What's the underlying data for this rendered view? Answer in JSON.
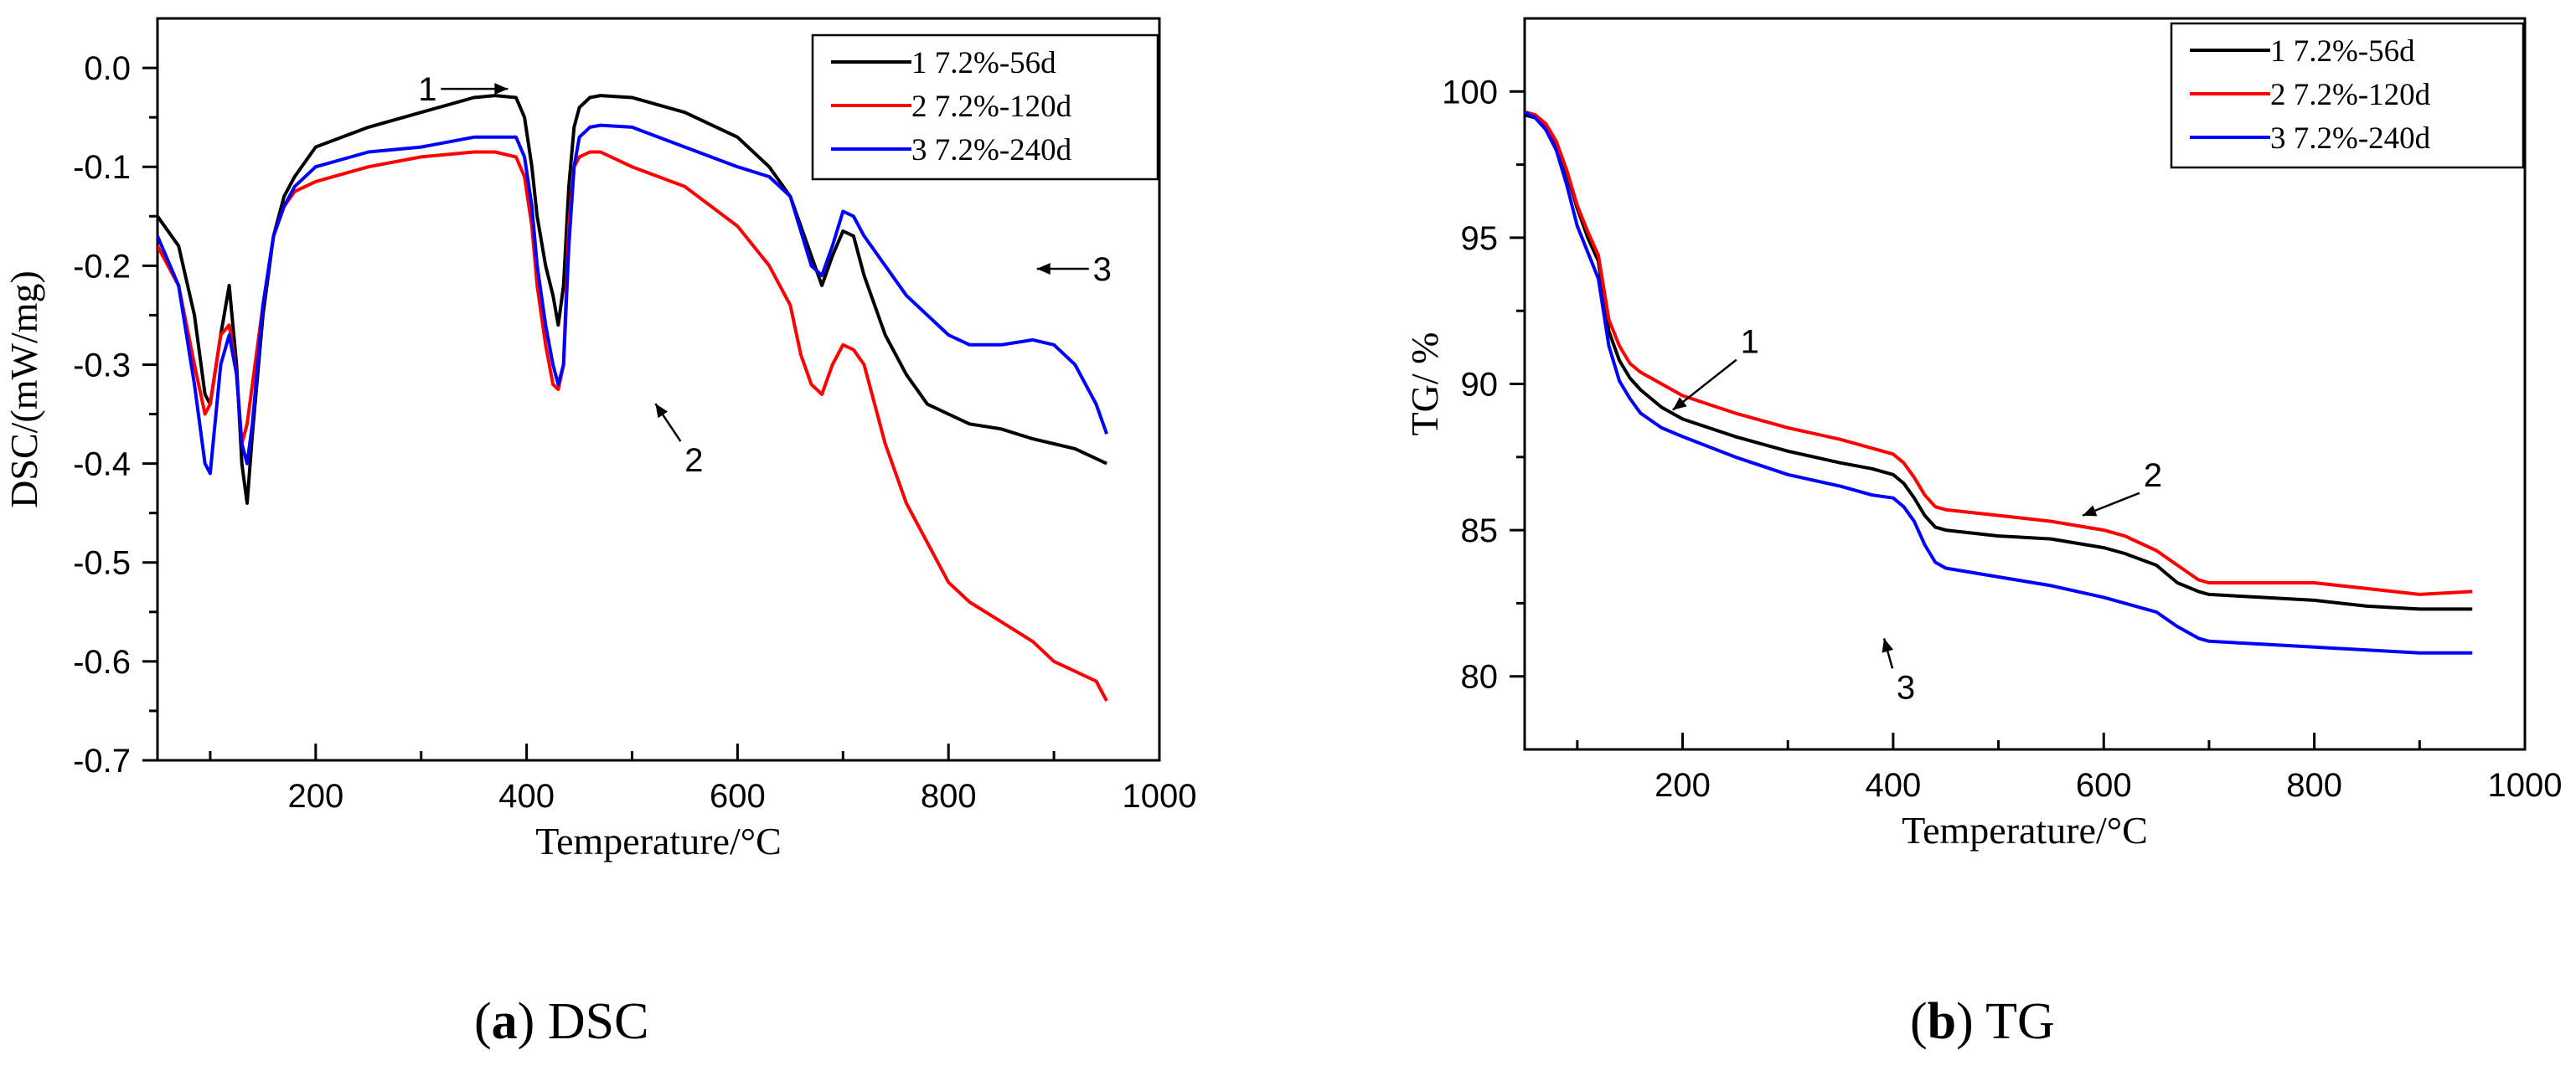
{
  "captions": [
    {
      "letter": "a",
      "text": "DSC"
    },
    {
      "letter": "b",
      "text": "TG"
    }
  ],
  "chart_data": [
    {
      "type": "line",
      "title": "",
      "xlabel": "Temperature/°C",
      "ylabel": "DSC/(mW/mg)",
      "xlim": [
        50,
        1000
      ],
      "ylim": [
        -0.7,
        0.05
      ],
      "xticks": [
        200,
        400,
        600,
        800,
        1000
      ],
      "yticks": [
        0.0,
        -0.1,
        -0.2,
        -0.3,
        -0.4,
        -0.5,
        -0.6,
        -0.7
      ],
      "ytick_labels": [
        "0.0",
        "-0.1",
        "-0.2",
        "-0.3",
        "-0.4",
        "-0.5",
        "-0.6",
        "-0.7"
      ],
      "grid": false,
      "legend_position": "top-right",
      "legend": [
        "1 7.2%-56d",
        "2 7.2%-120d",
        "3 7.2%-240d"
      ],
      "series": [
        {
          "name": "1 7.2%-56d",
          "color": "#000000",
          "x": [
            50,
            70,
            85,
            95,
            100,
            110,
            118,
            125,
            130,
            135,
            140,
            150,
            160,
            170,
            180,
            200,
            250,
            300,
            350,
            370,
            390,
            398,
            405,
            410,
            418,
            425,
            430,
            435,
            440,
            445,
            450,
            460,
            470,
            500,
            550,
            600,
            630,
            650,
            670,
            680,
            690,
            700,
            710,
            720,
            740,
            760,
            780,
            800,
            820,
            850,
            880,
            900,
            920,
            940,
            950
          ],
          "y": [
            -0.15,
            -0.18,
            -0.25,
            -0.33,
            -0.34,
            -0.27,
            -0.22,
            -0.3,
            -0.4,
            -0.44,
            -0.37,
            -0.25,
            -0.17,
            -0.13,
            -0.11,
            -0.08,
            -0.06,
            -0.045,
            -0.03,
            -0.028,
            -0.03,
            -0.05,
            -0.1,
            -0.15,
            -0.2,
            -0.23,
            -0.26,
            -0.22,
            -0.12,
            -0.06,
            -0.04,
            -0.03,
            -0.028,
            -0.03,
            -0.045,
            -0.07,
            -0.1,
            -0.13,
            -0.19,
            -0.22,
            -0.19,
            -0.165,
            -0.17,
            -0.21,
            -0.27,
            -0.31,
            -0.34,
            -0.35,
            -0.36,
            -0.365,
            -0.375,
            -0.38,
            -0.385,
            -0.395,
            -0.4
          ]
        },
        {
          "name": "2 7.2%-120d",
          "color": "#ff0000",
          "x": [
            50,
            70,
            85,
            95,
            100,
            110,
            118,
            125,
            130,
            135,
            140,
            150,
            160,
            170,
            180,
            200,
            250,
            300,
            350,
            370,
            390,
            398,
            405,
            410,
            418,
            425,
            430,
            435,
            440,
            445,
            450,
            460,
            470,
            500,
            550,
            600,
            630,
            650,
            660,
            670,
            680,
            690,
            700,
            710,
            720,
            740,
            760,
            780,
            800,
            820,
            850,
            880,
            900,
            920,
            940,
            950
          ],
          "y": [
            -0.18,
            -0.22,
            -0.3,
            -0.35,
            -0.34,
            -0.27,
            -0.26,
            -0.31,
            -0.38,
            -0.36,
            -0.32,
            -0.24,
            -0.17,
            -0.14,
            -0.125,
            -0.115,
            -0.1,
            -0.09,
            -0.085,
            -0.085,
            -0.09,
            -0.11,
            -0.16,
            -0.22,
            -0.28,
            -0.32,
            -0.325,
            -0.3,
            -0.16,
            -0.1,
            -0.09,
            -0.085,
            -0.085,
            -0.1,
            -0.12,
            -0.16,
            -0.2,
            -0.24,
            -0.29,
            -0.32,
            -0.33,
            -0.3,
            -0.28,
            -0.285,
            -0.3,
            -0.38,
            -0.44,
            -0.48,
            -0.52,
            -0.54,
            -0.56,
            -0.58,
            -0.6,
            -0.61,
            -0.62,
            -0.64
          ]
        },
        {
          "name": "3 7.2%-240d",
          "color": "#0000ff",
          "x": [
            50,
            70,
            85,
            95,
            100,
            110,
            118,
            125,
            130,
            135,
            140,
            150,
            160,
            170,
            180,
            200,
            250,
            300,
            350,
            370,
            390,
            398,
            405,
            410,
            418,
            425,
            430,
            435,
            440,
            445,
            450,
            460,
            470,
            500,
            550,
            600,
            630,
            650,
            670,
            680,
            690,
            700,
            710,
            720,
            740,
            760,
            780,
            800,
            820,
            850,
            880,
            900,
            920,
            940,
            950
          ],
          "y": [
            -0.17,
            -0.22,
            -0.32,
            -0.4,
            -0.41,
            -0.3,
            -0.27,
            -0.31,
            -0.38,
            -0.4,
            -0.36,
            -0.24,
            -0.17,
            -0.14,
            -0.12,
            -0.1,
            -0.085,
            -0.08,
            -0.07,
            -0.07,
            -0.07,
            -0.09,
            -0.14,
            -0.2,
            -0.26,
            -0.3,
            -0.32,
            -0.3,
            -0.18,
            -0.1,
            -0.07,
            -0.06,
            -0.058,
            -0.06,
            -0.08,
            -0.1,
            -0.11,
            -0.13,
            -0.2,
            -0.21,
            -0.18,
            -0.145,
            -0.15,
            -0.17,
            -0.2,
            -0.23,
            -0.25,
            -0.27,
            -0.28,
            -0.28,
            -0.275,
            -0.28,
            -0.3,
            -0.34,
            -0.37
          ]
        }
      ],
      "annotations": [
        {
          "text": "1",
          "x": 368,
          "y": 0.0
        },
        {
          "text": "2",
          "x": 600,
          "y": -0.32
        },
        {
          "text": "3",
          "x": 860,
          "y": -0.165
        }
      ]
    },
    {
      "type": "line",
      "title": "",
      "xlabel": "Temperature/°C",
      "ylabel": "TG/ %",
      "xlim": [
        50,
        1000
      ],
      "ylim": [
        77.5,
        102.5
      ],
      "xticks": [
        200,
        400,
        600,
        800,
        1000
      ],
      "yticks": [
        80,
        85,
        90,
        95,
        100
      ],
      "ytick_labels": [
        "80",
        "85",
        "90",
        "95",
        "100"
      ],
      "grid": false,
      "legend_position": "top-right",
      "legend": [
        "1 7.2%-56d",
        "2 7.2%-120d",
        "3 7.2%-240d"
      ],
      "series": [
        {
          "name": "1 7.2%-56d",
          "color": "#000000",
          "x": [
            50,
            60,
            70,
            80,
            90,
            100,
            110,
            120,
            130,
            140,
            150,
            160,
            180,
            200,
            250,
            300,
            350,
            380,
            400,
            410,
            420,
            430,
            440,
            450,
            500,
            550,
            600,
            620,
            650,
            670,
            690,
            700,
            750,
            800,
            850,
            900,
            950
          ],
          "y": [
            99.2,
            99.1,
            98.8,
            98.2,
            97.2,
            96,
            95,
            94.2,
            91.8,
            90.8,
            90.2,
            89.8,
            89.2,
            88.8,
            88.2,
            87.7,
            87.3,
            87.1,
            86.9,
            86.6,
            86.1,
            85.5,
            85.1,
            85,
            84.8,
            84.7,
            84.4,
            84.2,
            83.8,
            83.2,
            82.9,
            82.8,
            82.7,
            82.6,
            82.4,
            82.3,
            82.3
          ]
        },
        {
          "name": "2 7.2%-120d",
          "color": "#ff0000",
          "x": [
            50,
            60,
            70,
            80,
            90,
            100,
            110,
            120,
            130,
            140,
            150,
            160,
            180,
            200,
            250,
            300,
            350,
            380,
            400,
            410,
            420,
            430,
            440,
            450,
            500,
            550,
            600,
            620,
            650,
            670,
            690,
            700,
            750,
            800,
            850,
            900,
            950
          ],
          "y": [
            99.3,
            99.2,
            98.9,
            98.3,
            97.3,
            96.1,
            95.2,
            94.4,
            92.2,
            91.3,
            90.7,
            90.4,
            90,
            89.6,
            89,
            88.5,
            88.1,
            87.8,
            87.6,
            87.3,
            86.8,
            86.2,
            85.8,
            85.7,
            85.5,
            85.3,
            85,
            84.8,
            84.3,
            83.8,
            83.3,
            83.2,
            83.2,
            83.2,
            83,
            82.8,
            82.9
          ]
        },
        {
          "name": "3 7.2%-240d",
          "color": "#0000ff",
          "x": [
            50,
            60,
            70,
            80,
            90,
            100,
            110,
            120,
            130,
            140,
            150,
            160,
            180,
            200,
            250,
            300,
            350,
            380,
            400,
            410,
            420,
            430,
            440,
            450,
            500,
            550,
            600,
            620,
            650,
            670,
            690,
            700,
            750,
            800,
            850,
            900,
            950
          ],
          "y": [
            99.3,
            99.1,
            98.7,
            98,
            96.8,
            95.4,
            94.5,
            93.6,
            91.3,
            90.1,
            89.5,
            89,
            88.5,
            88.2,
            87.5,
            86.9,
            86.5,
            86.2,
            86.1,
            85.8,
            85.3,
            84.5,
            83.9,
            83.7,
            83.4,
            83.1,
            82.7,
            82.5,
            82.2,
            81.7,
            81.3,
            81.2,
            81.1,
            81,
            80.9,
            80.8,
            80.8
          ]
        }
      ],
      "annotations": [
        {
          "text": "1",
          "x": 240,
          "y": 91.4
        },
        {
          "text": "2",
          "x": 595,
          "y": 86.9
        },
        {
          "text": "3",
          "x": 420,
          "y": 81.7
        }
      ]
    }
  ]
}
